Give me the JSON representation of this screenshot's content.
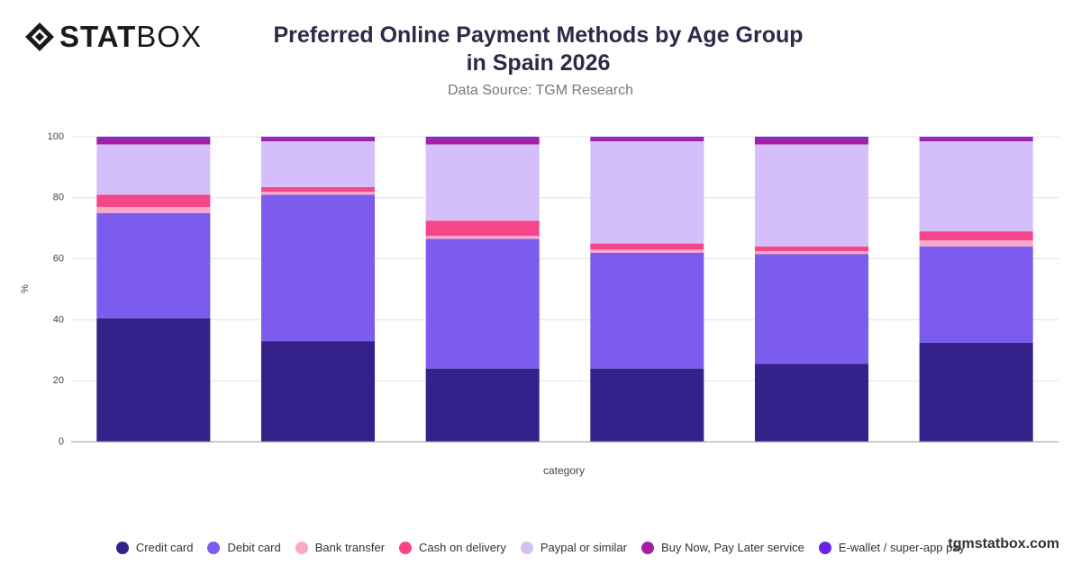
{
  "logo": {
    "bold": "STAT",
    "light": "BOX"
  },
  "watermark": "tgmstatbox.com",
  "chart_data": {
    "type": "stacked_bar",
    "title": "Preferred Online Payment Methods by Age Group in Spain 2026",
    "subtitle": "Data Source: TGM Research",
    "x_label": "category",
    "y_label": "%",
    "categories": [
      null,
      null,
      null,
      null,
      null,
      null
    ],
    "ylim": [
      0,
      100
    ],
    "yticks": [
      0,
      20,
      40,
      60,
      80,
      100
    ],
    "grid": true,
    "legend": "bottom",
    "series": [
      {
        "name": "Credit card",
        "color": "#35218a",
        "values": [
          40.5,
          33,
          24,
          24,
          25.5,
          32.5
        ]
      },
      {
        "name": "Debit card",
        "color": "#7b5ced",
        "values": [
          34.5,
          48,
          42.5,
          38,
          36,
          31.5
        ]
      },
      {
        "name": "Bank transfer",
        "color": "#f9a8c8",
        "values": [
          2,
          1,
          1,
          1,
          1,
          2
        ]
      },
      {
        "name": "Cash on delivery",
        "color": "#f5468a",
        "values": [
          4,
          1.5,
          5,
          2,
          1.5,
          3
        ]
      },
      {
        "name": "Paypal or similar",
        "color": "#d4bffa",
        "values": [
          16.5,
          15,
          25,
          33.5,
          33.5,
          29.5
        ]
      },
      {
        "name": "Buy Now, Pay Later service",
        "color": "#a61ea6",
        "values": [
          2,
          1,
          2,
          1,
          2,
          1
        ]
      },
      {
        "name": "E-wallet / super-app pay",
        "color": "#6b21e8",
        "values": [
          0.5,
          0.5,
          0.5,
          0.5,
          0.5,
          0.5
        ]
      }
    ]
  }
}
